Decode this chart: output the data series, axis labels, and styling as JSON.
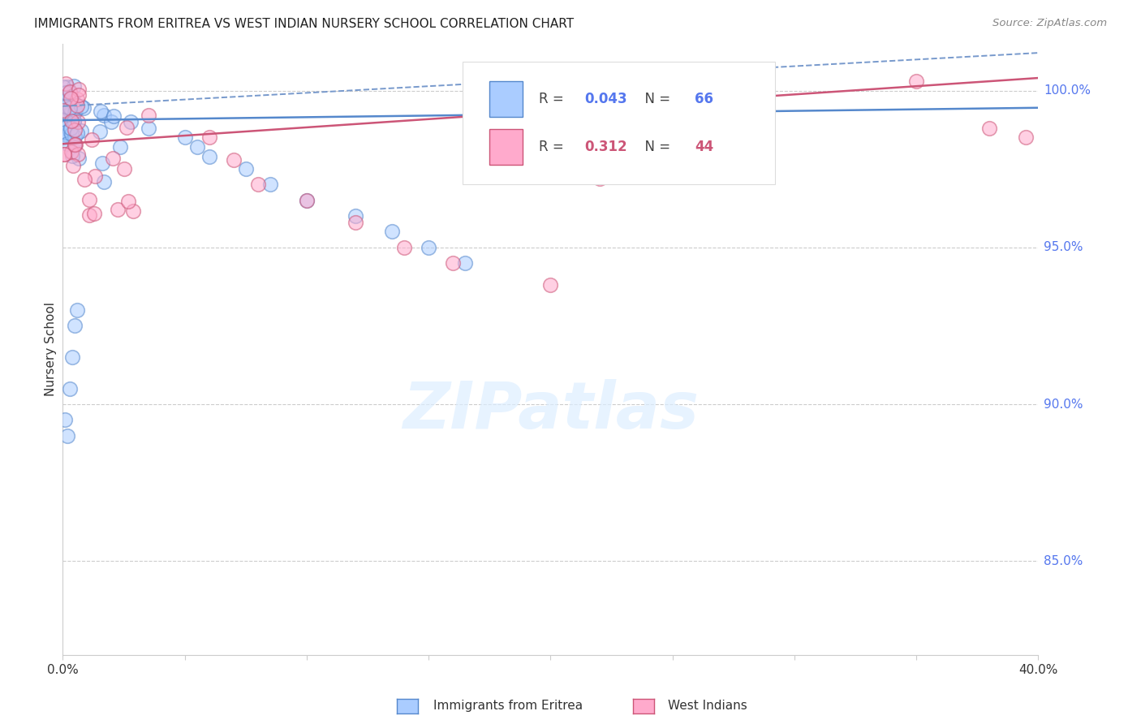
{
  "title": "IMMIGRANTS FROM ERITREA VS WEST INDIAN NURSERY SCHOOL CORRELATION CHART",
  "source": "Source: ZipAtlas.com",
  "ylabel": "Nursery School",
  "right_ytick_vals": [
    85.0,
    90.0,
    95.0,
    100.0
  ],
  "right_ytick_labels": [
    "85.0%",
    "90.0%",
    "95.0%",
    "100.0%"
  ],
  "xlim": [
    0.0,
    0.4
  ],
  "ylim": [
    82.0,
    101.5
  ],
  "blue_color_face": "#aaccff",
  "blue_color_edge": "#5588cc",
  "pink_color_face": "#ffaacc",
  "pink_color_edge": "#cc5577",
  "blue_line_color": "#5588cc",
  "pink_line_color": "#cc5577",
  "blue_dash_color": "#7799cc",
  "grid_color": "#cccccc",
  "right_axis_label_color": "#5577ee",
  "watermark_color": "#ddeeff",
  "background_color": "#ffffff",
  "legend_label1_r": "0.043",
  "legend_label1_n": "66",
  "legend_label2_r": "0.312",
  "legend_label2_n": "44",
  "bottom_legend1": "Immigrants from Eritrea",
  "bottom_legend2": "West Indians"
}
